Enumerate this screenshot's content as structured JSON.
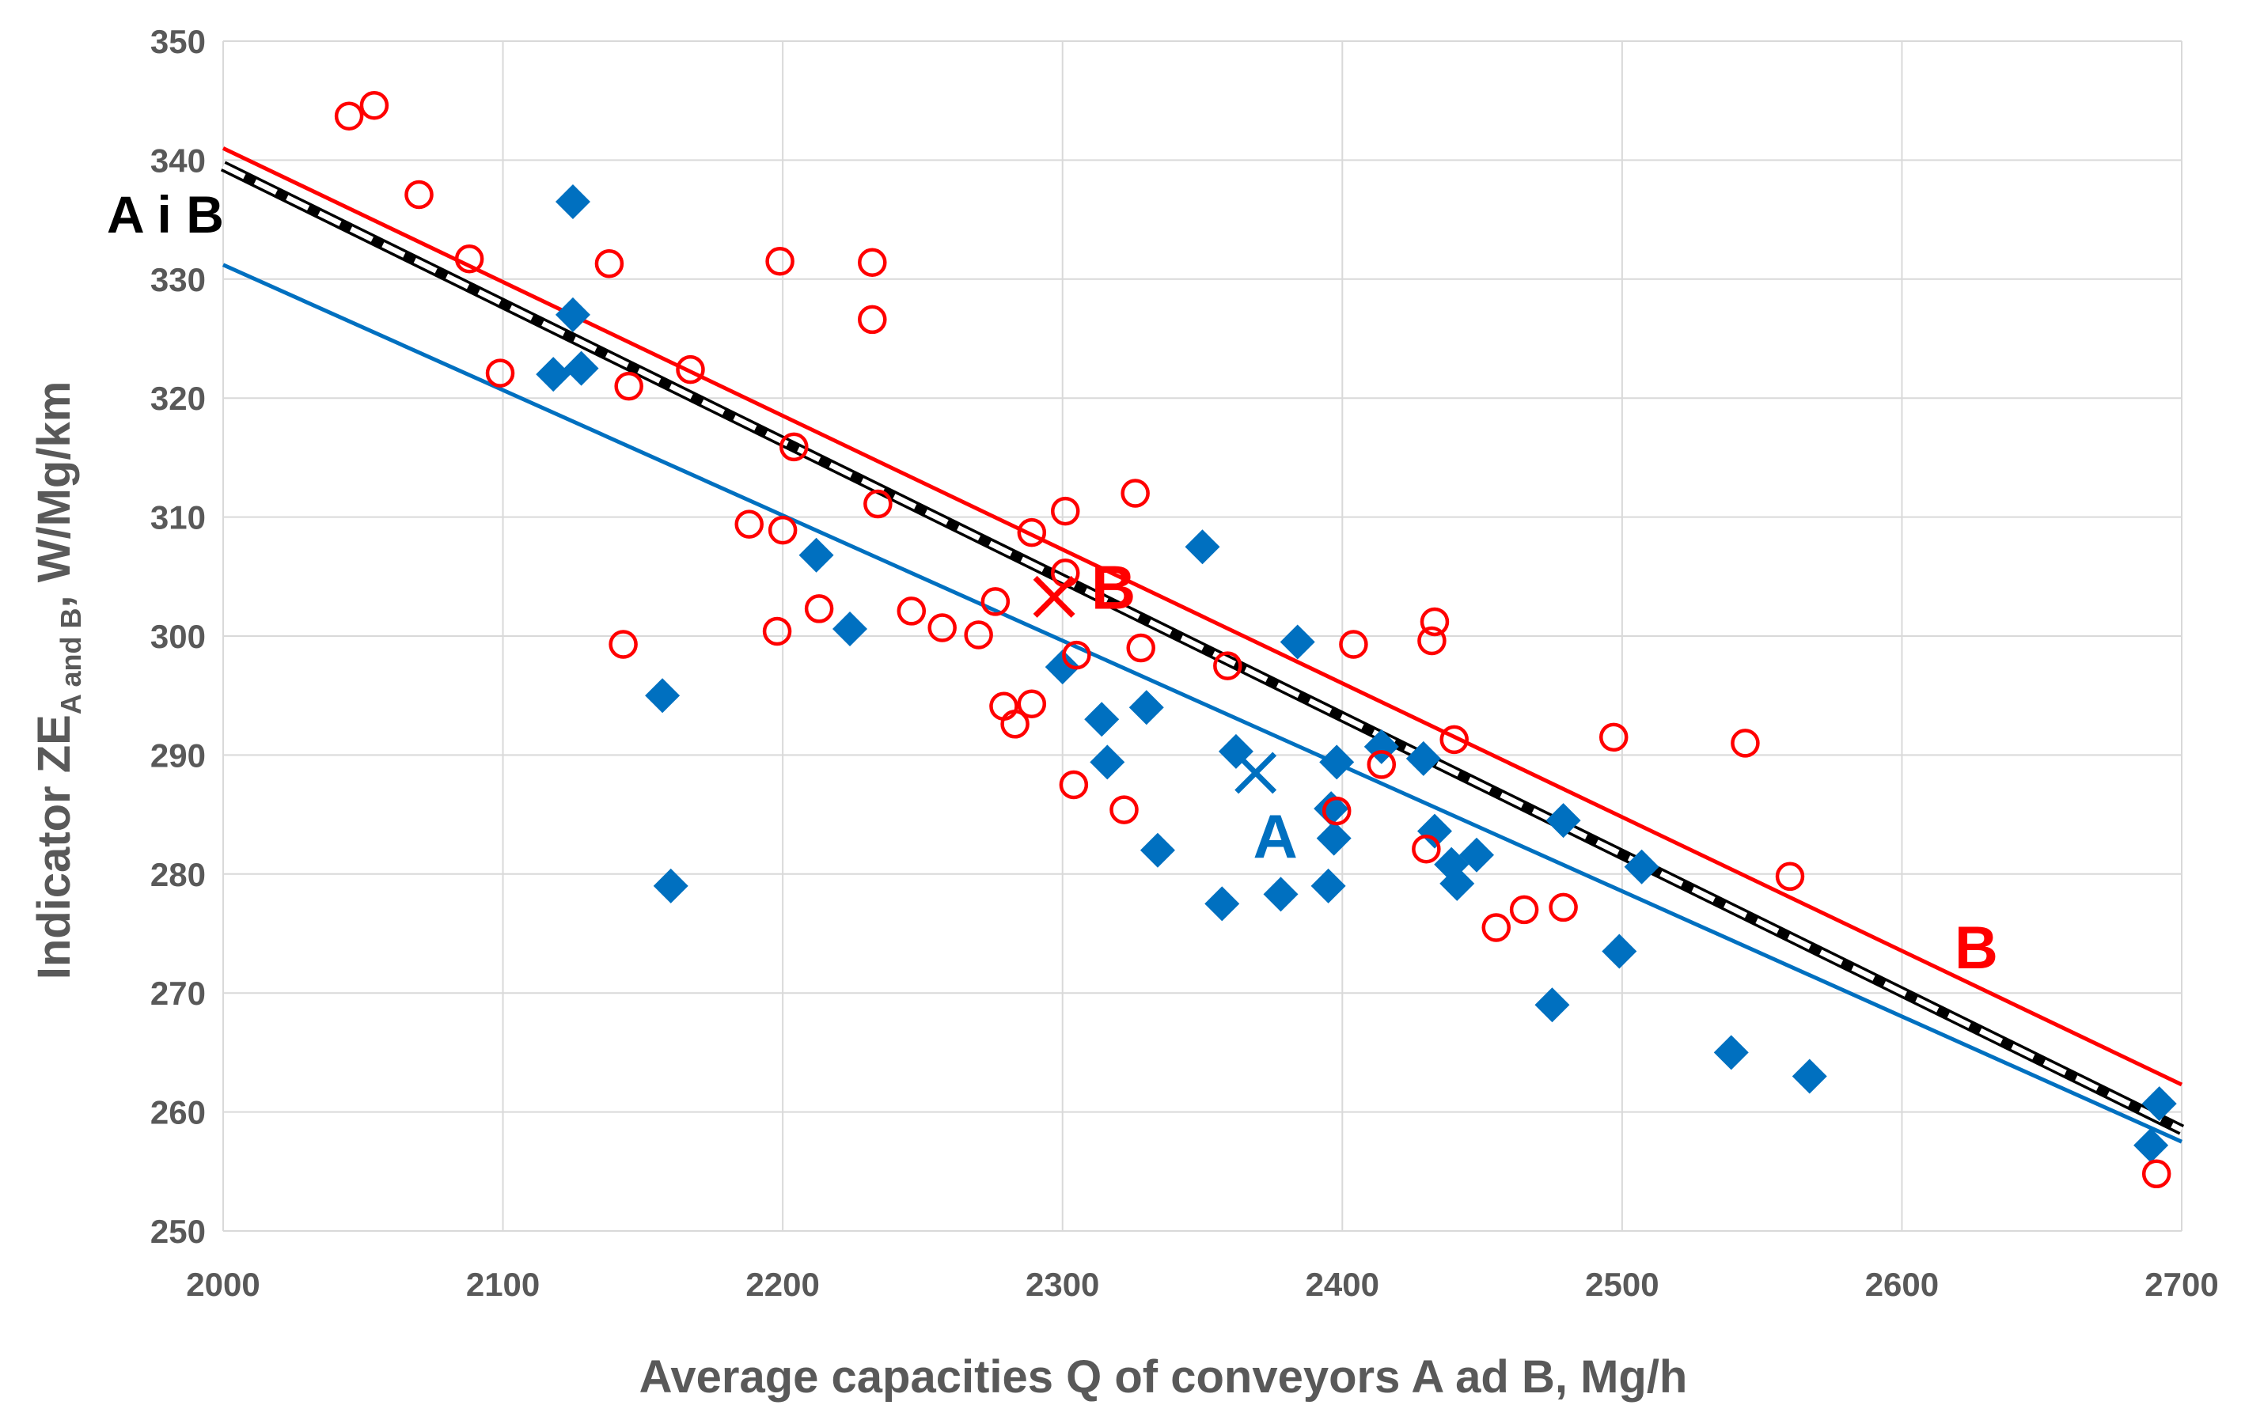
{
  "chart_data": {
    "type": "scatter",
    "xlabel": "Average capacities Q of conveyors A ad B,  Mg/h",
    "ylabel_main": "Indicator ZE",
    "ylabel_sub": "A and B",
    "ylabel_tail": ",  W/Mg/km",
    "xlim": [
      2000,
      2700
    ],
    "ylim": [
      250,
      350
    ],
    "x_ticks": [
      2000,
      2100,
      2200,
      2300,
      2400,
      2500,
      2600,
      2700
    ],
    "y_ticks": [
      250,
      260,
      270,
      280,
      290,
      300,
      310,
      320,
      330,
      340,
      350
    ],
    "grid": true,
    "colors": {
      "A": "#0070C0",
      "B": "#FF0000",
      "AB": "#000000",
      "grid": "#D9D9D9",
      "text": "#595959"
    },
    "series": [
      {
        "name": "A",
        "marker": "diamond",
        "points": [
          [
            2125,
            336.5
          ],
          [
            2125,
            327
          ],
          [
            2118,
            322
          ],
          [
            2128,
            322.5
          ],
          [
            2157,
            295
          ],
          [
            2160,
            279
          ],
          [
            2212,
            306.8
          ],
          [
            2224,
            300.6
          ],
          [
            2300,
            297.4
          ],
          [
            2314,
            293
          ],
          [
            2316,
            289.4
          ],
          [
            2330,
            294
          ],
          [
            2334,
            282
          ],
          [
            2350,
            307.5
          ],
          [
            2357,
            277.5
          ],
          [
            2362,
            290.3
          ],
          [
            2378,
            278.3
          ],
          [
            2384,
            299.5
          ],
          [
            2395,
            279
          ],
          [
            2396,
            285.5
          ],
          [
            2397,
            283
          ],
          [
            2398,
            289.4
          ],
          [
            2414,
            290.7
          ],
          [
            2429,
            289.7
          ],
          [
            2433,
            283.6
          ],
          [
            2439,
            280.8
          ],
          [
            2441,
            279.2
          ],
          [
            2448,
            281.6
          ],
          [
            2475,
            269
          ],
          [
            2479,
            284.5
          ],
          [
            2499,
            273.5
          ],
          [
            2507,
            280.6
          ],
          [
            2539,
            265
          ],
          [
            2567,
            263
          ],
          [
            2689,
            257.2
          ],
          [
            2692,
            260.7
          ]
        ]
      },
      {
        "name": "B",
        "marker": "circle",
        "points": [
          [
            2045,
            343.7
          ],
          [
            2054,
            344.6
          ],
          [
            2070,
            337.1
          ],
          [
            2088,
            331.7
          ],
          [
            2099,
            322.1
          ],
          [
            2138,
            331.3
          ],
          [
            2143,
            299.3
          ],
          [
            2145,
            321
          ],
          [
            2167,
            322.4
          ],
          [
            2188,
            309.4
          ],
          [
            2198,
            300.4
          ],
          [
            2199,
            331.5
          ],
          [
            2200,
            308.9
          ],
          [
            2204,
            315.9
          ],
          [
            2213,
            302.3
          ],
          [
            2232,
            331.4
          ],
          [
            2232,
            326.6
          ],
          [
            2234,
            311.1
          ],
          [
            2246,
            302.1
          ],
          [
            2257,
            300.7
          ],
          [
            2270,
            300.1
          ],
          [
            2276,
            302.9
          ],
          [
            2279,
            294.1
          ],
          [
            2283,
            292.6
          ],
          [
            2289,
            308.7
          ],
          [
            2289,
            294.3
          ],
          [
            2301,
            310.5
          ],
          [
            2301,
            305.3
          ],
          [
            2304,
            287.5
          ],
          [
            2305,
            298.4
          ],
          [
            2322,
            285.4
          ],
          [
            2326,
            312
          ],
          [
            2328,
            299
          ],
          [
            2359,
            297.5
          ],
          [
            2398,
            285.3
          ],
          [
            2404,
            299.3
          ],
          [
            2414,
            289.2
          ],
          [
            2430,
            282.1
          ],
          [
            2432,
            299.6
          ],
          [
            2433,
            301.2
          ],
          [
            2440,
            291.3
          ],
          [
            2455,
            275.5
          ],
          [
            2465,
            277
          ],
          [
            2479,
            277.2
          ],
          [
            2497,
            291.5
          ],
          [
            2544,
            291
          ],
          [
            2560,
            279.8
          ],
          [
            2691,
            254.8
          ]
        ]
      }
    ],
    "trendlines": [
      {
        "name": "B",
        "from": [
          2000,
          341
        ],
        "to": [
          2700,
          262.3
        ]
      },
      {
        "name": "A i B",
        "from": [
          2000,
          339.5
        ],
        "to": [
          2700,
          258.5
        ],
        "style": "dashed"
      },
      {
        "name": "A",
        "from": [
          2000,
          331.2
        ],
        "to": [
          2700,
          257.5
        ]
      }
    ],
    "means": [
      {
        "name": "A",
        "x": 2369,
        "y": 288.5,
        "label": "A"
      },
      {
        "name": "B",
        "x": 2297,
        "y": 303.3,
        "label": "B"
      }
    ],
    "line_labels": [
      {
        "text": "A i B",
        "target": "AB"
      },
      {
        "text": "B",
        "target": "B"
      }
    ]
  }
}
